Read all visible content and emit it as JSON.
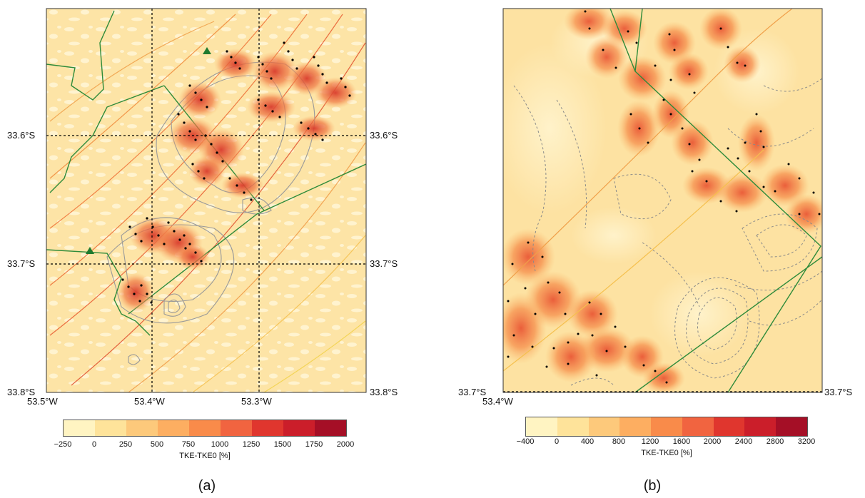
{
  "figure_a": {
    "caption": "(a)",
    "lat_labels": [
      "33.6°S",
      "33.7°S",
      "33.8°S"
    ],
    "lon_labels": [
      "53.5°W",
      "53.4°W",
      "53.3°W"
    ],
    "colorbar": {
      "title": "TKE-TKE0 [%]",
      "ticks": [
        "−250",
        "0",
        "250",
        "500",
        "750",
        "1000",
        "1250",
        "1500",
        "1750",
        "2000"
      ],
      "colors": [
        "#fff4c2",
        "#fee39a",
        "#fdc97b",
        "#fdae61",
        "#f98b4a",
        "#f16440",
        "#e0362e",
        "#cb1e2a",
        "#a50f26"
      ]
    }
  },
  "figure_b": {
    "caption": "(b)",
    "lat_labels": [
      "33.7°S",
      "33.7°S"
    ],
    "lon_labels": [
      "53.4°W"
    ],
    "colorbar": {
      "title": "TKE-TKE0 [%]",
      "ticks": [
        "−400",
        "0",
        "400",
        "800",
        "1200",
        "1600",
        "2000",
        "2400",
        "2800",
        "3200"
      ],
      "colors": [
        "#fff4c2",
        "#fee39a",
        "#fdc97b",
        "#fdae61",
        "#f98b4a",
        "#f16440",
        "#e0362e",
        "#cb1e2a",
        "#a50f26"
      ]
    }
  },
  "colors": {
    "background": "#fde5a8",
    "light_patch": "#fff3cf",
    "coast": "#2e8b3a",
    "turbine": "#000000",
    "wake": "#e8593a"
  }
}
